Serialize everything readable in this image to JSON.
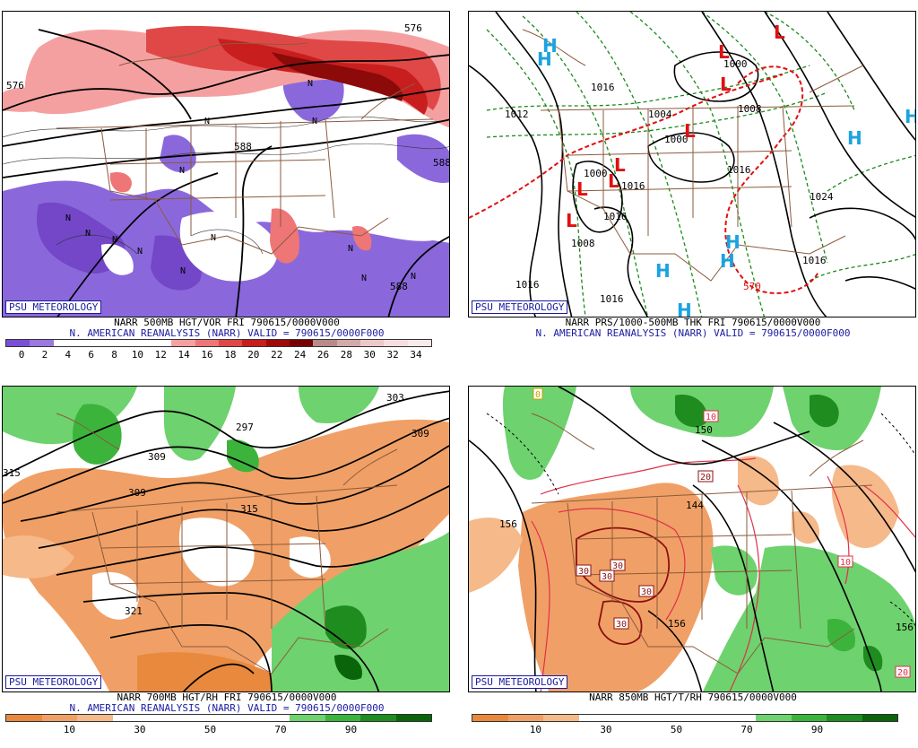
{
  "brand": "PSU METEOROLOGY",
  "panels": [
    {
      "id": "p500",
      "caption1": "NARR 500MB HGT/VOR FRI 790615/0000V000",
      "caption2": "N. AMERICAN REANALYSIS (NARR) VALID = 790615/0000F000",
      "contour_labels": [
        "576",
        "588",
        "588",
        "588",
        "576"
      ],
      "symbols": [
        "N",
        "N",
        "N",
        "N",
        "N",
        "N",
        "N",
        "N",
        "N",
        "N",
        "N",
        "N",
        "N"
      ],
      "colorbar": {
        "colors": [
          "#7a4ed6",
          "#9a78e0",
          "#ffffff",
          "#ffffff",
          "#ffffff",
          "#ffffff",
          "#ffffff",
          "#f6a0a0",
          "#ee7676",
          "#e04848",
          "#c81e1e",
          "#a00a0a",
          "#780000",
          "#b98a8a",
          "#d4a9a9",
          "#ecc8c8",
          "#f7dede",
          "#fbeaea"
        ],
        "tick_labels": [
          "0",
          "2",
          "4",
          "6",
          "8",
          "10",
          "12",
          "14",
          "16",
          "18",
          "20",
          "22",
          "24",
          "26",
          "28",
          "30",
          "32",
          "34"
        ]
      }
    },
    {
      "id": "p1000",
      "caption1": "NARR PRS/1000-500MB THK FRI 790615/0000V000",
      "caption2": "N. AMERICAN REANALYSIS (NARR) VALID = 790615/0000F000",
      "contour_labels": [
        "1016",
        "1012",
        "1004",
        "1008",
        "1000",
        "1000",
        "1000",
        "1016",
        "1016",
        "1024",
        "1008",
        "1016",
        "1016",
        "1016",
        "1016",
        "570"
      ],
      "highs": [
        "H",
        "H",
        "H",
        "H",
        "H",
        "H",
        "H",
        "H"
      ],
      "lows": [
        "L",
        "L",
        "L",
        "L",
        "L",
        "L",
        "L",
        "L"
      ],
      "colors": {
        "high": "#1aa3e0",
        "low": "#e01010"
      }
    },
    {
      "id": "p700",
      "caption1": "NARR 700MB HGT/RH FRI 790615/0000V000",
      "caption2": "N. AMERICAN REANALYSIS (NARR) VALID = 790615/0000F000",
      "contour_labels": [
        "297",
        "303",
        "309",
        "309",
        "315",
        "309",
        "315",
        "321"
      ],
      "colorbar": {
        "colors": [
          "#e8893e",
          "#f0a066",
          "#f5b98a",
          "#ffffff",
          "#ffffff",
          "#ffffff",
          "#ffffff",
          "#ffffff",
          "#6ed26e",
          "#3cb43c",
          "#1e8c1e",
          "#0a640a"
        ],
        "tick_labels": [
          "10",
          "30",
          "50",
          "70",
          "90"
        ]
      }
    },
    {
      "id": "p850",
      "caption1": "NARR 850MB HGT/T/RH 790615/0000V000",
      "caption2": "",
      "contour_labels": [
        "156",
        "150",
        "144",
        "156",
        "156",
        "10",
        "20",
        "30",
        "30",
        "30",
        "30",
        "30",
        "10",
        "20",
        "0"
      ],
      "colorbar": {
        "colors": [
          "#e8893e",
          "#f0a066",
          "#f5b98a",
          "#ffffff",
          "#ffffff",
          "#ffffff",
          "#ffffff",
          "#ffffff",
          "#6ed26e",
          "#3cb43c",
          "#1e8c1e",
          "#0a640a"
        ],
        "tick_labels": [
          "10",
          "30",
          "50",
          "70",
          "90"
        ]
      }
    }
  ]
}
